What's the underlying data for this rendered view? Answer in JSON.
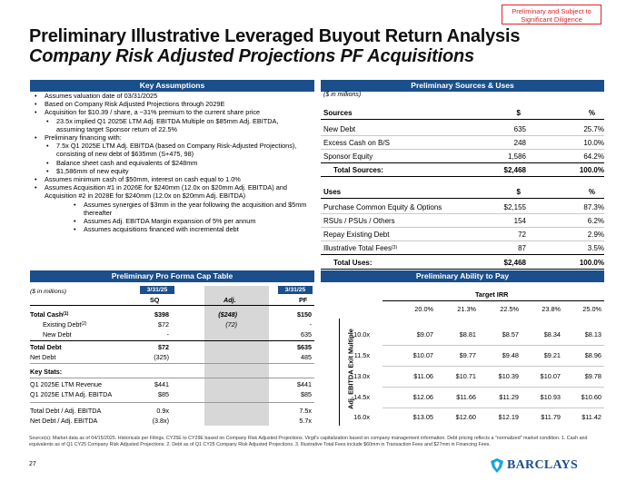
{
  "stamp": {
    "line1": "Preliminary and Subject to",
    "line2": "Significant Diligence"
  },
  "title": {
    "line1": "Preliminary Illustrative Leveraged Buyout Return Analysis",
    "line2": "Company Risk Adjusted Projections PF Acquisitions"
  },
  "key_assumptions": {
    "header": "Key Assumptions",
    "items": [
      "Assumes valuation date of 03/31/2025",
      "Based on Company Risk Adjusted Projections through 2029E",
      "Acquisition for $10.39 / share, a ~31% premium to the current share price",
      "23.5x implied Q1 2025E LTM Adj. EBITDA Multiple on $85mm Adj. EBITDA, assuming target Sponsor return of 22.5%",
      "Preliminary financing with:",
      "7.5x Q1 2025E LTM Adj. EBITDA (based on Company Risk-Adjusted Projections), consisting of new debt of $635mm (S+475, 98)",
      "Balance sheet cash and equivalents of $248mm",
      "$1,586mm of new equity",
      "Assumes minimum cash of $50mm, interest on cash equal to 1.0%",
      "Assumes Acquisition #1 in 2026E for $240mm (12.0x on $20mm Adj. EBITDA) and Acquisition #2 in 2028E for $240mm (12.0x on $20mm Adj. EBITDA)",
      "Assumes synergies of $3mm in the year following the acquisition and $5mm thereafter",
      "Assumes Adj. EBITDA Margin expansion of 5% per annum",
      "Assumes acquisitions financed with incremental debt"
    ]
  },
  "sources_uses": {
    "header": "Preliminary Sources & Uses",
    "unit": "($ in millions)",
    "sources_header": {
      "label": "Sources",
      "c1": "$",
      "c2": "%"
    },
    "sources": [
      {
        "label": "New Debt",
        "amount": "635",
        "pct": "25.7%"
      },
      {
        "label": "Excess Cash on B/S",
        "amount": "248",
        "pct": "10.0%"
      },
      {
        "label": "Sponsor Equity",
        "amount": "1,586",
        "pct": "64.2%"
      }
    ],
    "sources_total": {
      "label": "Total Sources:",
      "amount": "$2,468",
      "pct": "100.0%"
    },
    "uses_header": {
      "label": "Uses",
      "c1": "$",
      "c2": "%"
    },
    "uses": [
      {
        "label": "Purchase Common Equity & Options",
        "amount": "$2,155",
        "pct": "87.3%"
      },
      {
        "label": "RSUs / PSUs / Others",
        "amount": "154",
        "pct": "6.2%"
      },
      {
        "label": "Repay Existing Debt",
        "amount": "72",
        "pct": "2.9%"
      },
      {
        "label": "Illustrative Total Fees",
        "sup": "(3)",
        "amount": "87",
        "pct": "3.5%"
      }
    ],
    "uses_total": {
      "label": "Total Uses:",
      "amount": "$2,468",
      "pct": "100.0%"
    }
  },
  "cap_table": {
    "header": "Preliminary Pro Forma Cap Table",
    "unit": "($ in millions)",
    "date_sq": "3/31/25",
    "date_pf": "3/31/25",
    "col_sq": "SQ",
    "col_adj": "Adj.",
    "col_pf": "PF",
    "rows": [
      {
        "label": "Total Cash",
        "sup": "(1)",
        "sq": "$398",
        "adj": "($248)",
        "pf": "$150",
        "style": "b"
      },
      {
        "label": "Existing Debt",
        "sup": "(2)",
        "sq": "$72",
        "adj": "(72)",
        "pf": "-",
        "style": "sub"
      },
      {
        "label": "New Debt",
        "sup": "",
        "sq": "-",
        "adj": "",
        "pf": "635",
        "style": "sub"
      },
      {
        "label": "Total Debt",
        "sup": "",
        "sq": "$72",
        "adj": "",
        "pf": "$635",
        "style": "b"
      },
      {
        "label": "Net Debt",
        "sup": "",
        "sq": "(325)",
        "adj": "",
        "pf": "485",
        "style": ""
      }
    ],
    "key_stats_label": "Key Stats:",
    "stats": [
      {
        "label": "Q1 2025E LTM Revenue",
        "sq": "$441",
        "pf": "$441"
      },
      {
        "label": "Q1 2025E LTM Adj. EBITDA",
        "sq": "$85",
        "pf": "$85"
      }
    ],
    "ratios": [
      {
        "label": "Total Debt / Adj. EBITDA",
        "sq": "0.9x",
        "pf": "7.5x"
      },
      {
        "label": "Net Debt / Adj. EBITDA",
        "sq": "(3.8x)",
        "pf": "5.7x"
      }
    ]
  },
  "irr": {
    "header": "Preliminary Ability to Pay",
    "target_label": "Target IRR",
    "y_label": "Adj. EBITDA Exit Multiple",
    "cols": [
      "20.0%",
      "21.3%",
      "22.5%",
      "23.8%",
      "25.0%"
    ],
    "rows": [
      {
        "mult": "10.0x",
        "vals": [
          "$9.07",
          "$8.81",
          "$8.57",
          "$8.34",
          "$8.13"
        ]
      },
      {
        "mult": "11.5x",
        "vals": [
          "$10.07",
          "$9.77",
          "$9.48",
          "$9.21",
          "$8.96"
        ]
      },
      {
        "mult": "13.0x",
        "vals": [
          "$11.06",
          "$10.71",
          "$10.39",
          "$10.07",
          "$9.78"
        ]
      },
      {
        "mult": "14.5x",
        "vals": [
          "$12.06",
          "$11.66",
          "$11.29",
          "$10.93",
          "$10.60"
        ]
      },
      {
        "mult": "16.0x",
        "vals": [
          "$13.05",
          "$12.60",
          "$12.19",
          "$11.79",
          "$11.42"
        ]
      }
    ]
  },
  "footnote": "Source(s): Market data as of 04/15/2025. Historicals per Filings. CY25E to CY29E based on Company Risk Adjusted Projections. Virgil's capitalization based on company management information. Debt pricing reflects a \"normalized\" market condition. 1. Cash and equivalents as of Q1 CY25 Company Risk Adjusted Projections. 2. Debt as of Q1 CY25 Company Risk Adjusted Projections. 3. Illustrative Total Fees include $60mm in Transaction Fees and $27mm in Financing Fees.",
  "page_number": "27",
  "logo_text": "BARCLAYS",
  "colors": {
    "header_blue": "#1a4f8b",
    "stamp_red": "#d9262b",
    "shade_grey": "#d7d7d7"
  }
}
